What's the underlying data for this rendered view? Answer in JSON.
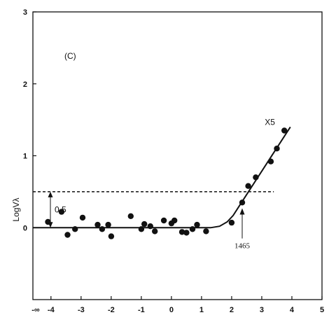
{
  "chart_data": {
    "type": "scatter",
    "panel_label": "(C)",
    "ylabel": "LogVλ",
    "xlabel": "",
    "xlim": [
      -4.6,
      5
    ],
    "ylim": [
      -1,
      3
    ],
    "x_ticks": [
      -4,
      -3,
      -2,
      -1,
      0,
      1,
      2,
      3,
      4,
      5
    ],
    "x_tick_labels": [
      "-4",
      "-3",
      "-2",
      "-1",
      "0",
      "1",
      "2",
      "3",
      "4",
      "5"
    ],
    "x_infinity_label": "-∞",
    "y_ticks": [
      0,
      1,
      2,
      3
    ],
    "y_tick_labels": [
      "0",
      "1",
      "2",
      "3"
    ],
    "points": [
      {
        "x": -4.1,
        "y": 0.08
      },
      {
        "x": -3.65,
        "y": 0.22
      },
      {
        "x": -3.45,
        "y": -0.1
      },
      {
        "x": -3.2,
        "y": -0.02
      },
      {
        "x": -2.95,
        "y": 0.14
      },
      {
        "x": -2.45,
        "y": 0.04
      },
      {
        "x": -2.3,
        "y": -0.02
      },
      {
        "x": -2.1,
        "y": 0.04
      },
      {
        "x": -2.0,
        "y": -0.12
      },
      {
        "x": -1.35,
        "y": 0.16
      },
      {
        "x": -1.0,
        "y": -0.02
      },
      {
        "x": -0.9,
        "y": 0.05
      },
      {
        "x": -0.7,
        "y": 0.02
      },
      {
        "x": -0.55,
        "y": -0.05
      },
      {
        "x": -0.25,
        "y": 0.1
      },
      {
        "x": 0.0,
        "y": 0.06
      },
      {
        "x": 0.1,
        "y": 0.1
      },
      {
        "x": 0.35,
        "y": -0.06
      },
      {
        "x": 0.5,
        "y": -0.07
      },
      {
        "x": 0.7,
        "y": -0.02
      },
      {
        "x": 0.85,
        "y": 0.04
      },
      {
        "x": 1.15,
        "y": -0.05
      },
      {
        "x": 2.0,
        "y": 0.07
      },
      {
        "x": 2.35,
        "y": 0.35
      },
      {
        "x": 2.55,
        "y": 0.58
      },
      {
        "x": 2.8,
        "y": 0.7
      },
      {
        "x": 3.3,
        "y": 0.92
      },
      {
        "x": 3.5,
        "y": 1.1
      },
      {
        "x": 3.75,
        "y": 1.35
      }
    ],
    "fit_line": [
      {
        "x": -4.6,
        "y": 0.0
      },
      {
        "x": 1.3,
        "y": 0.0
      },
      {
        "x": 1.6,
        "y": 0.02
      },
      {
        "x": 1.85,
        "y": 0.08
      },
      {
        "x": 2.05,
        "y": 0.17
      },
      {
        "x": 2.25,
        "y": 0.3
      },
      {
        "x": 3.95,
        "y": 1.4
      }
    ],
    "threshold_y": 0.5,
    "threshold_x_range": [
      -4.6,
      3.4
    ],
    "annotations": {
      "offset_label": "0.5",
      "scale_label": "X5",
      "threshold_label": "1465",
      "threshold_x": 2.35
    }
  }
}
